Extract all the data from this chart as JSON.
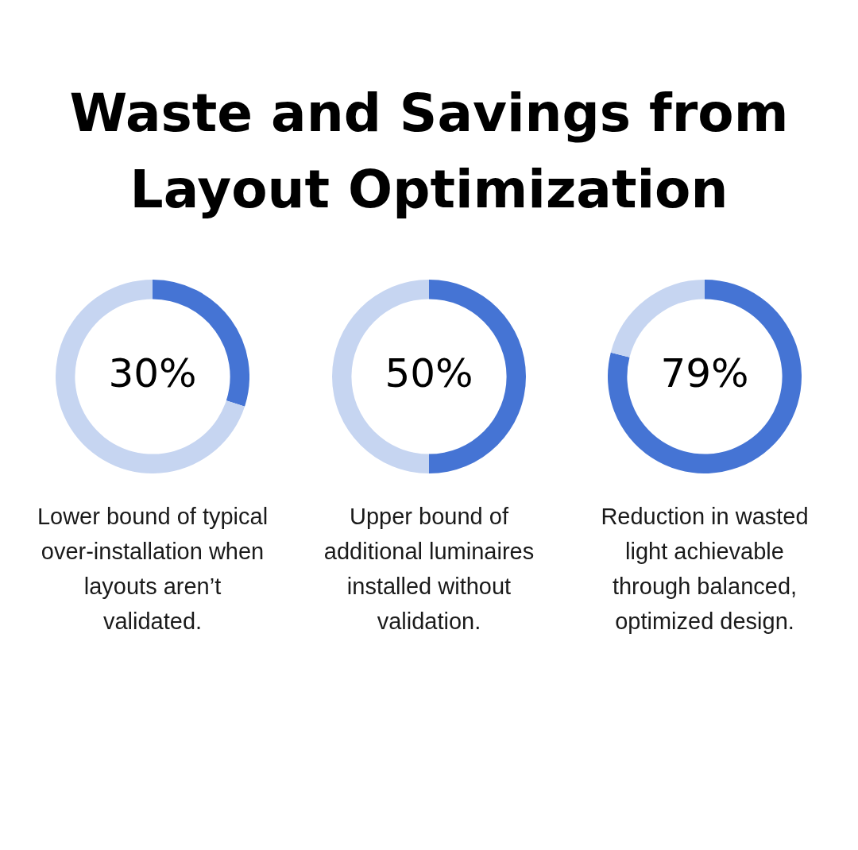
{
  "chart_data": [
    {
      "type": "donut",
      "title": "Waste and Savings from Layout Optimization",
      "categories": [
        null,
        null
      ],
      "values": [
        30,
        70
      ],
      "colors": [
        "#4574d4",
        "#c6d5f1"
      ],
      "value_labels": [
        "30%",
        null
      ],
      "annotations": [
        "Lower bound of typical over-installation when layouts aren’t validated."
      ]
    },
    {
      "type": "donut",
      "categories": [
        null,
        null
      ],
      "values": [
        50,
        50
      ],
      "colors": [
        "#4574d4",
        "#c6d5f1"
      ],
      "value_labels": [
        "50%",
        null
      ],
      "annotations": [
        "Upper bound of additional luminaires installed without validation."
      ]
    },
    {
      "type": "donut",
      "categories": [
        null,
        null
      ],
      "values": [
        79,
        21
      ],
      "colors": [
        "#4574d4",
        "#c6d5f1"
      ],
      "value_labels": [
        "79%",
        null
      ],
      "annotations": [
        "Reduction in wasted light achievable through balanced, optimized design."
      ]
    }
  ]
}
